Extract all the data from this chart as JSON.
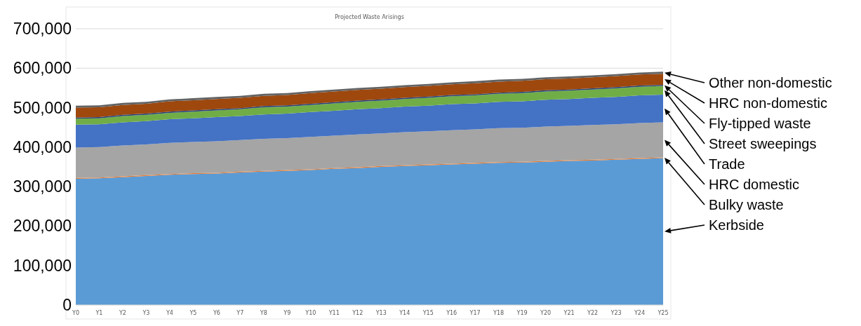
{
  "chart_data": {
    "type": "area",
    "stacked": true,
    "title": "Projected Waste Arisings",
    "categories": [
      "Y0",
      "Y1",
      "Y2",
      "Y3",
      "Y4",
      "Y5",
      "Y6",
      "Y7",
      "Y8",
      "Y9",
      "Y10",
      "Y11",
      "Y12",
      "Y13",
      "Y14",
      "Y15",
      "Y16",
      "Y17",
      "Y18",
      "Y19",
      "Y20",
      "Y21",
      "Y22",
      "Y23",
      "Y24",
      "Y25"
    ],
    "ylim": [
      0,
      700000
    ],
    "yticks": [
      {
        "value": 0,
        "label": "0"
      },
      {
        "value": 100000,
        "label": "100,000"
      },
      {
        "value": 200000,
        "label": "200,000"
      },
      {
        "value": 300000,
        "label": "300,000"
      },
      {
        "value": 400000,
        "label": "400,000"
      },
      {
        "value": 500000,
        "label": "500,000"
      },
      {
        "value": 600000,
        "label": "600,000"
      },
      {
        "value": 700000,
        "label": "700,000"
      }
    ],
    "grid": "y",
    "series": [
      {
        "name": "Kerbside",
        "color": "#5b9bd5",
        "values": [
          320000,
          321000,
          324000,
          327000,
          330000,
          332000,
          333000,
          336000,
          338000,
          340000,
          342000,
          345000,
          347000,
          350000,
          352000,
          354000,
          356000,
          358000,
          360000,
          361000,
          363000,
          365000,
          366000,
          368000,
          370000,
          372000
        ]
      },
      {
        "name": "Bulky waste",
        "color": "#ed7d31",
        "values": [
          2000,
          2000,
          2000,
          2000,
          2000,
          2000,
          2000,
          2000,
          2000,
          2000,
          2000,
          2000,
          2000,
          2000,
          2000,
          2000,
          2000,
          2000,
          2000,
          2000,
          2000,
          2000,
          2000,
          2000,
          2000,
          2000
        ]
      },
      {
        "name": "HRC domestic",
        "color": "#a5a5a5",
        "values": [
          77000,
          77000,
          78000,
          78000,
          79000,
          79000,
          80000,
          80000,
          81000,
          81000,
          82000,
          82000,
          83000,
          83000,
          84000,
          84000,
          85000,
          85000,
          86000,
          86000,
          87000,
          87000,
          88000,
          88000,
          89000,
          89000
        ]
      },
      {
        "name": "Trade",
        "color": "#4472c4",
        "values": [
          58000,
          58000,
          59000,
          59000,
          60000,
          60000,
          61000,
          61000,
          62000,
          62000,
          63000,
          63000,
          64000,
          64000,
          65000,
          65000,
          66000,
          66000,
          67000,
          67000,
          68000,
          68000,
          69000,
          69000,
          70000,
          70000
        ]
      },
      {
        "name": "Street sweepings",
        "color": "#70ad47",
        "values": [
          15000,
          15000,
          16000,
          16000,
          16000,
          17000,
          17000,
          17000,
          18000,
          18000,
          18000,
          19000,
          19000,
          19000,
          19000,
          20000,
          20000,
          20000,
          20000,
          21000,
          21000,
          21000,
          21000,
          22000,
          22000,
          22000
        ]
      },
      {
        "name": "Fly-tipped waste",
        "color": "#264478",
        "values": [
          3000,
          3000,
          3000,
          3000,
          3000,
          3000,
          3000,
          3000,
          3000,
          3000,
          3000,
          3000,
          3000,
          3000,
          3000,
          3000,
          3000,
          3000,
          3000,
          3000,
          3000,
          3000,
          3000,
          3000,
          3000,
          3000
        ]
      },
      {
        "name": "HRC non-domestic",
        "color": "#9e480e",
        "values": [
          25000,
          25000,
          25000,
          25000,
          26000,
          26000,
          26000,
          26000,
          26000,
          26000,
          27000,
          27000,
          27000,
          27000,
          27000,
          27000,
          27000,
          28000,
          28000,
          28000,
          28000,
          28000,
          28000,
          28000,
          28000,
          28000
        ]
      },
      {
        "name": "Other non-domestic",
        "color": "#636363",
        "values": [
          5000,
          5000,
          5000,
          5000,
          5000,
          5000,
          5000,
          5000,
          5000,
          5000,
          5000,
          5000,
          5000,
          5000,
          5000,
          5000,
          5000,
          5000,
          5000,
          5000,
          5000,
          5000,
          5000,
          5000,
          5000,
          5000
        ]
      }
    ]
  }
}
